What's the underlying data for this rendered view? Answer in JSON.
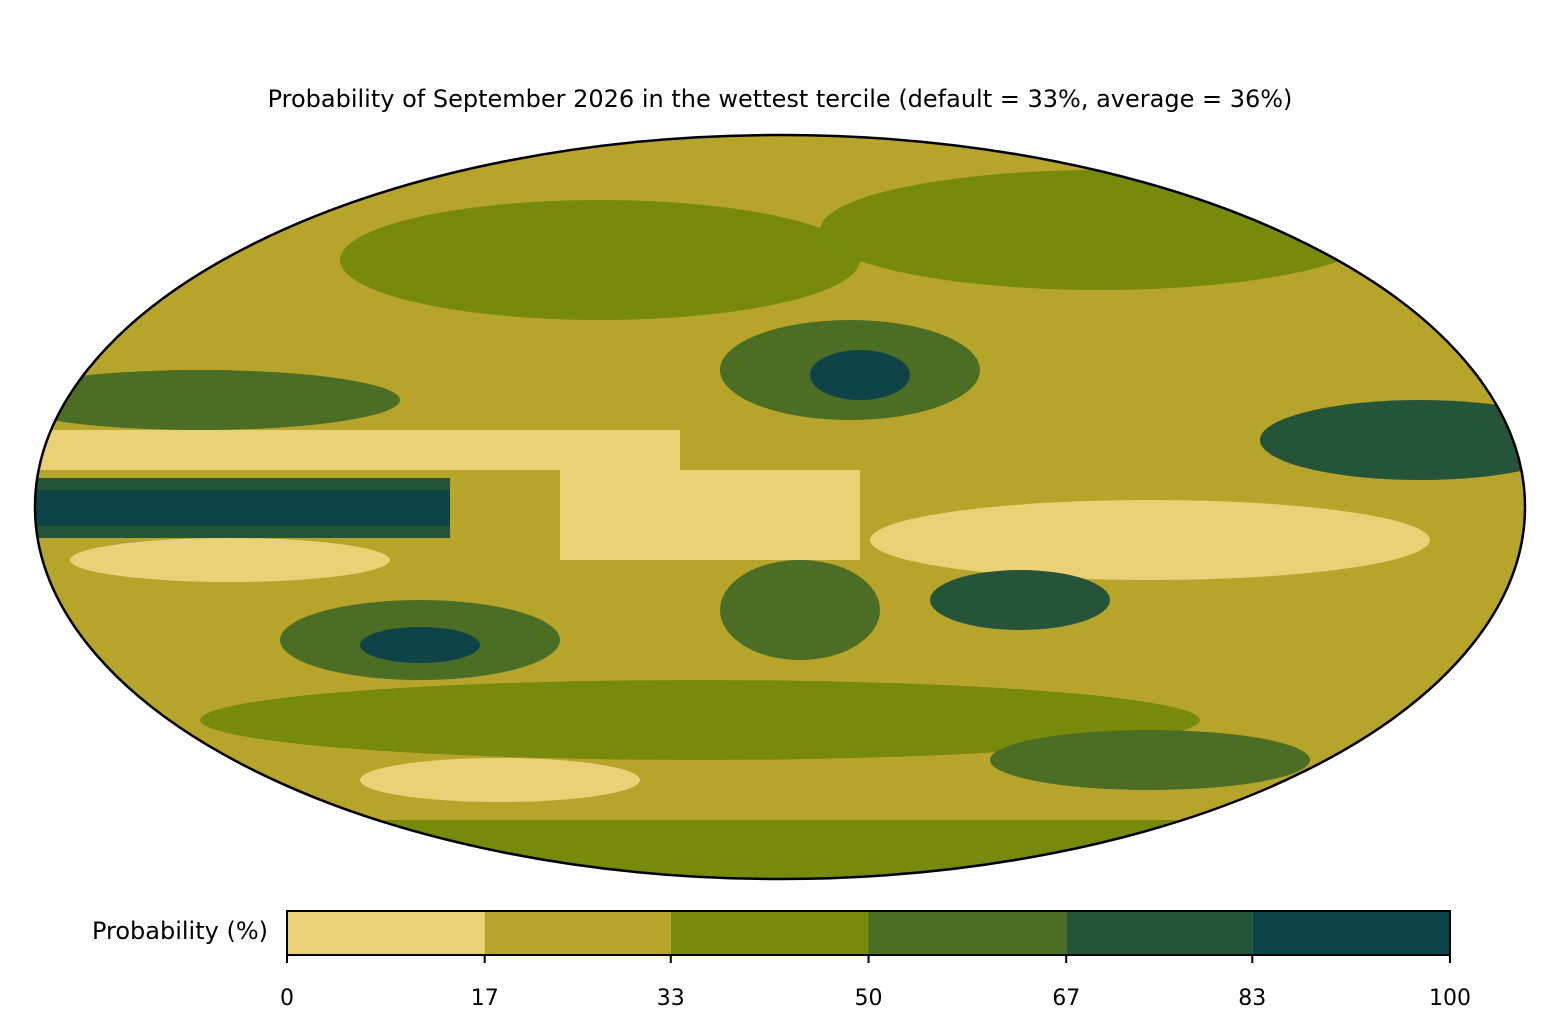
{
  "title": "Probability of September 2026 in the wettest tercile (default = 33%, average = 36%)",
  "colorbar": {
    "label": "Probability (%)",
    "bounds": [
      0,
      17,
      33,
      50,
      67,
      83,
      100
    ],
    "colors": [
      "#ebd175",
      "#b6a42b",
      "#778a0c",
      "#4b6e24",
      "#255439",
      "#0e4447"
    ]
  }
}
